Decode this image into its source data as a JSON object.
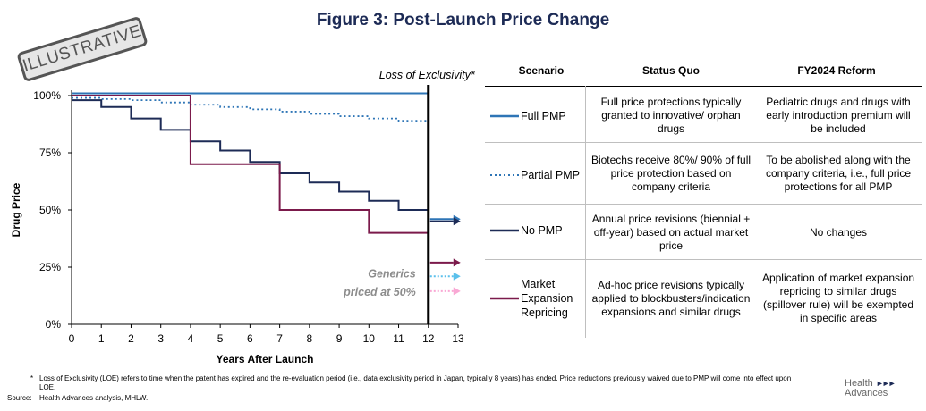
{
  "title": "Figure 3: Post-Launch Price Change",
  "stamp": "ILLUSTRATIVE",
  "chart_data": {
    "type": "line",
    "step": true,
    "xlabel": "Years After Launch",
    "ylabel": "Drug Price",
    "xlim": [
      0,
      13
    ],
    "ylim": [
      0,
      100
    ],
    "x_ticks": [
      "0",
      "1",
      "2",
      "3",
      "4",
      "5",
      "6",
      "7",
      "8",
      "9",
      "10",
      "11",
      "12",
      "13"
    ],
    "y_ticks": [
      "0%",
      "25%",
      "50%",
      "75%",
      "100%"
    ],
    "y_tick_values": [
      0,
      25,
      50,
      75,
      100
    ],
    "loe_year": 12,
    "loe_label": "Loss of Exclusivity*",
    "generics_label_line1": "Generics",
    "generics_label_line2": "priced at 50%",
    "series": [
      {
        "name": "Full PMP",
        "color": "#2e75b6",
        "style": "solid",
        "x": [
          0,
          12
        ],
        "y": [
          101,
          101
        ],
        "post_loe_arrow_y": 46
      },
      {
        "name": "Partial PMP",
        "color": "#2e75b6",
        "style": "dotted",
        "x": [
          0,
          1,
          1,
          2,
          2,
          3,
          3,
          4,
          4,
          5,
          5,
          6,
          6,
          7,
          7,
          8,
          8,
          9,
          9,
          10,
          10,
          11,
          11,
          12
        ],
        "y": [
          99,
          99,
          98.5,
          98.5,
          98,
          98,
          97,
          97,
          96,
          96,
          95,
          95,
          94,
          94,
          93,
          93,
          92,
          92,
          91,
          91,
          90,
          90,
          89,
          89
        ],
        "post_loe_arrow_y": 21
      },
      {
        "name": "No PMP",
        "color": "#1d2b56",
        "style": "solid",
        "x": [
          0,
          1,
          1,
          2,
          2,
          3,
          3,
          4,
          4,
          5,
          5,
          6,
          6,
          7,
          7,
          8,
          8,
          9,
          9,
          10,
          10,
          11,
          11,
          12
        ],
        "y": [
          98,
          98,
          95,
          95,
          90,
          90,
          85,
          85,
          80,
          80,
          76,
          76,
          71,
          71,
          66,
          66,
          62,
          62,
          58,
          58,
          54,
          54,
          50,
          50
        ],
        "post_loe_arrow_y": 45
      },
      {
        "name": "Market Expansion Repricing",
        "color": "#7b1a4b",
        "style": "solid",
        "x": [
          0,
          4,
          4,
          7,
          7,
          10,
          10,
          12
        ],
        "y": [
          100,
          100,
          70,
          70,
          50,
          50,
          40,
          40
        ],
        "post_loe_arrow_y": 27
      }
    ],
    "generic_arrow_colors": [
      "#2e75b6",
      "#5bc0eb",
      "#f9a8d4"
    ]
  },
  "table": {
    "headers": [
      "Scenario",
      "Status Quo",
      "FY2024 Reform"
    ],
    "rows": [
      {
        "scenario": "Full PMP",
        "legend_style": "solid",
        "legend_color": "#2e75b6",
        "status_quo": "Full price protections typically granted to innovative/ orphan drugs",
        "reform": "Pediatric drugs and drugs with early introduction premium will be included"
      },
      {
        "scenario": "Partial PMP",
        "legend_style": "dotted",
        "legend_color": "#2e75b6",
        "status_quo": "Biotechs receive 80%/ 90% of full price protection based on company criteria",
        "reform": "To be abolished along with the company criteria, i.e., full price protections for all PMP"
      },
      {
        "scenario": "No PMP",
        "legend_style": "solid",
        "legend_color": "#1d2b56",
        "status_quo": "Annual price revisions (biennial + off-year) based on actual market price",
        "reform": "No changes"
      },
      {
        "scenario": "Market Expansion Repricing",
        "legend_style": "solid",
        "legend_color": "#7b1a4b",
        "status_quo": "Ad-hoc price revisions typically applied to blockbusters/indication expansions and similar drugs",
        "reform": "Application of market expansion repricing to similar drugs (spillover rule) will be exempted in specific areas"
      }
    ]
  },
  "footnote_marker": "*",
  "footnote": "Loss of Exclusivity (LOE) refers to time when the patent has expired and the re-evaluation period (i.e., data exclusivity period in Japan, typically 8 years) has ended. Price reductions previously waived due to PMP will come into effect upon LOE.",
  "source_label": "Source:",
  "source": "Health Advances analysis, MHLW.",
  "logo_line1": "Health",
  "logo_line2": "Advances"
}
